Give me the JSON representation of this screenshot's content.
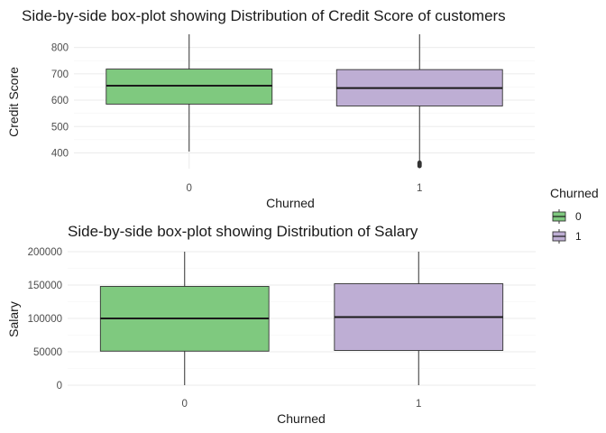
{
  "colors": {
    "group0": "#7fc97f",
    "group1": "#beaed4"
  },
  "legend": {
    "title": "Churned",
    "entries": [
      {
        "label": "0",
        "color": "#7fc97f"
      },
      {
        "label": "1",
        "color": "#beaed4"
      }
    ]
  },
  "chart_data": [
    {
      "type": "boxplot",
      "title": "Side-by-side box-plot showing Distribution of Credit Score of customers",
      "xlabel": "Churned",
      "ylabel": "Credit Score",
      "categories": [
        "0",
        "1"
      ],
      "ylim": [
        340,
        850
      ],
      "yticks": [
        400,
        500,
        600,
        700,
        800
      ],
      "ytick_labels": [
        "400",
        "500",
        "600",
        "700",
        "800"
      ],
      "grid": true,
      "legend_position": "right",
      "boxes": [
        {
          "category": "0",
          "whisker_low": 405,
          "q1": 585,
          "median": 655,
          "q3": 718,
          "whisker_high": 850,
          "outliers": []
        },
        {
          "category": "1",
          "whisker_low": 365,
          "q1": 578,
          "median": 646,
          "q3": 716,
          "whisker_high": 850,
          "outliers": [
            363,
            360,
            358,
            355,
            352,
            350
          ]
        }
      ]
    },
    {
      "type": "boxplot",
      "title": "Side-by-side box-plot showing Distribution of Salary",
      "xlabel": "Churned",
      "ylabel": "Salary",
      "categories": [
        "0",
        "1"
      ],
      "ylim": [
        0,
        200000
      ],
      "yticks": [
        0,
        50000,
        100000,
        150000,
        200000
      ],
      "ytick_labels": [
        "0",
        "50000",
        "100000",
        "150000",
        "200000"
      ],
      "grid": true,
      "legend_position": "right",
      "boxes": [
        {
          "category": "0",
          "whisker_low": 0,
          "q1": 51000,
          "median": 100000,
          "q3": 148000,
          "whisker_high": 200000,
          "outliers": []
        },
        {
          "category": "1",
          "whisker_low": 0,
          "q1": 52000,
          "median": 102000,
          "q3": 152000,
          "whisker_high": 200000,
          "outliers": []
        }
      ]
    }
  ]
}
